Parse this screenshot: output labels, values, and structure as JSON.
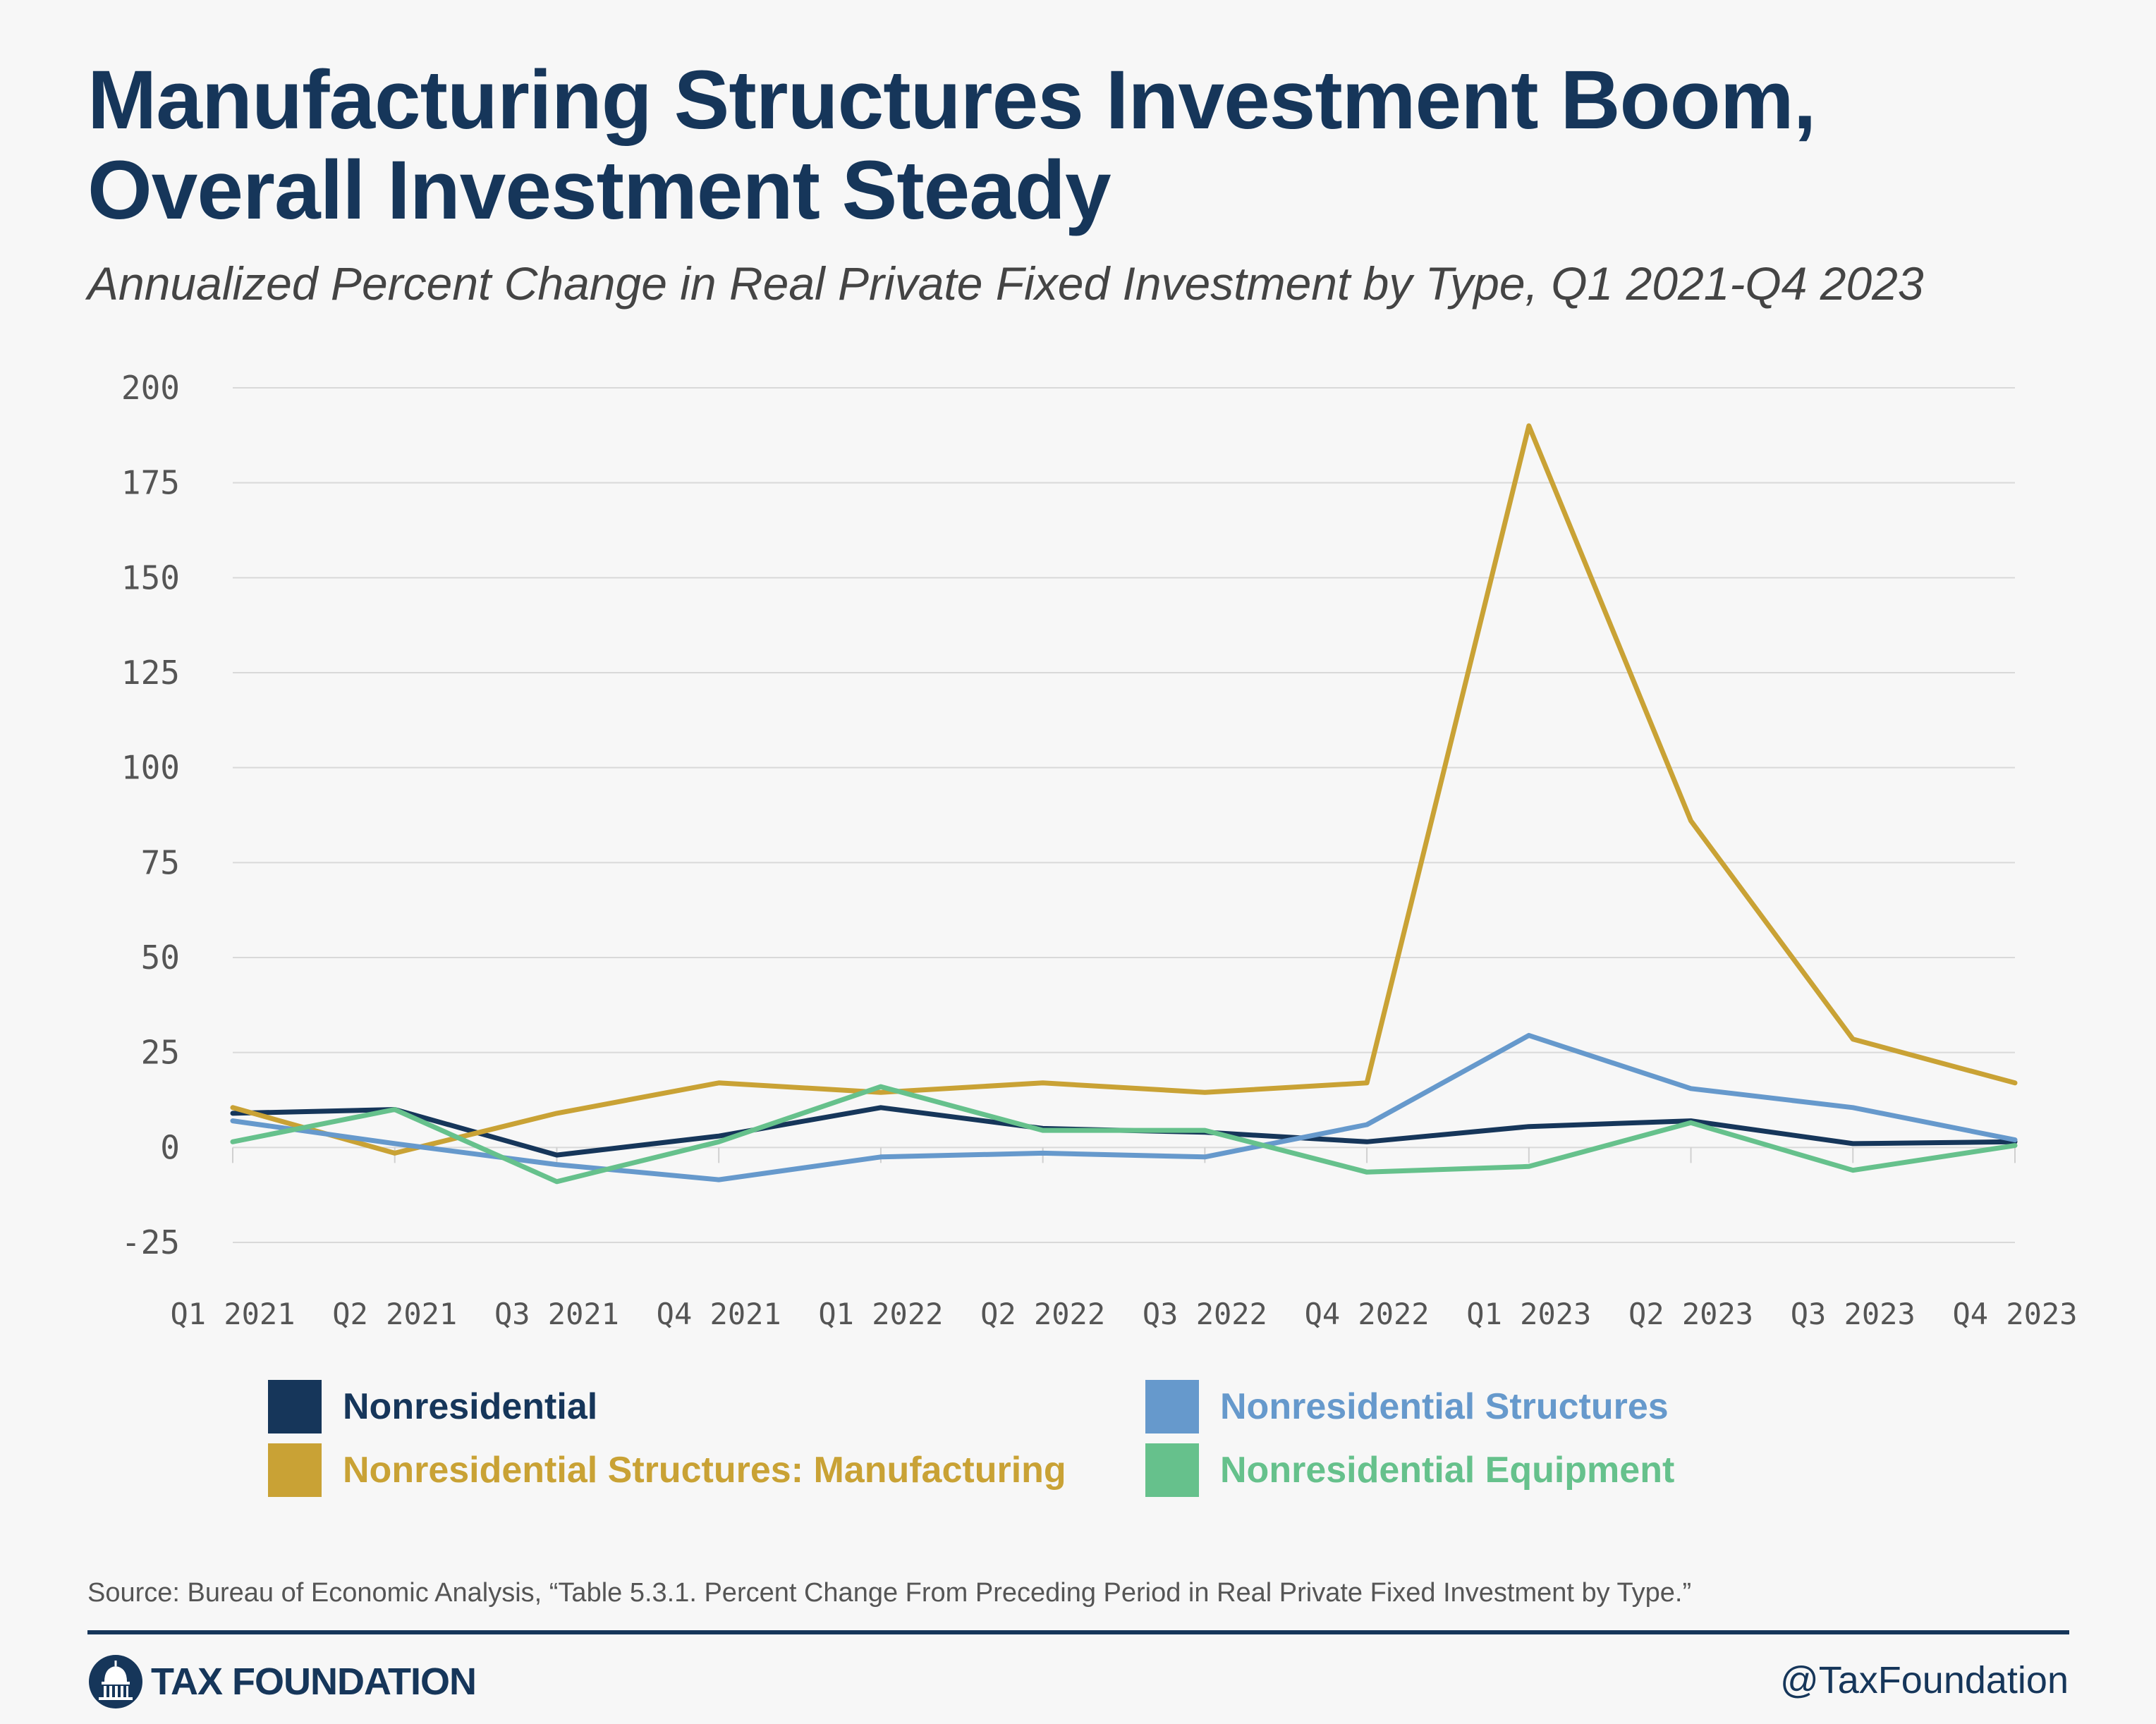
{
  "header": {
    "title": "Manufacturing Structures Investment Boom, Overall Investment Steady",
    "subtitle": "Annualized Percent Change in Real Private Fixed Investment by Type, Q1 2021-Q4 2023"
  },
  "chart_data": {
    "type": "line",
    "title": "Manufacturing Structures Investment Boom, Overall Investment Steady",
    "subtitle": "Annualized Percent Change in Real Private Fixed Investment by Type, Q1 2021-Q4 2023",
    "categories": [
      "Q1 2021",
      "Q2 2021",
      "Q3 2021",
      "Q4 2021",
      "Q1 2022",
      "Q2 2022",
      "Q3 2022",
      "Q4 2022",
      "Q1 2023",
      "Q2 2023",
      "Q3 2023",
      "Q4 2023"
    ],
    "ylim": [
      -25,
      200
    ],
    "yticks": [
      -25,
      0,
      25,
      50,
      75,
      100,
      125,
      150,
      175,
      200
    ],
    "grid": true,
    "legend_position": "bottom",
    "series": [
      {
        "name": "Nonresidential",
        "color": "#16365a",
        "values": [
          9.0,
          10.0,
          -2.0,
          3.0,
          10.5,
          5.0,
          4.0,
          1.5,
          5.5,
          7.0,
          1.0,
          1.5
        ]
      },
      {
        "name": "Nonresidential Structures: Manufacturing",
        "color": "#c9a235",
        "values": [
          10.5,
          -1.5,
          9.0,
          17.0,
          14.5,
          17.0,
          14.5,
          17.0,
          190.0,
          86.0,
          28.5,
          17.0
        ]
      },
      {
        "name": "Nonresidential Structures",
        "color": "#6699cc",
        "values": [
          7.0,
          1.0,
          -4.5,
          -8.5,
          -2.5,
          -1.5,
          -2.5,
          6.0,
          29.5,
          15.5,
          10.5,
          2.0
        ]
      },
      {
        "name": "Nonresidential Equipment",
        "color": "#66c18c",
        "values": [
          1.5,
          10.0,
          -9.0,
          1.5,
          16.0,
          4.5,
          4.5,
          -6.5,
          -5.0,
          6.5,
          -6.0,
          0.5
        ]
      }
    ]
  },
  "footer": {
    "source": "Source: Bureau of Economic Analysis, “Table 5.3.1. Percent Change From Preceding Period in Real Private Fixed Investment by Type.”",
    "logo_text": "TAX FOUNDATION",
    "handle": "@TaxFoundation"
  }
}
